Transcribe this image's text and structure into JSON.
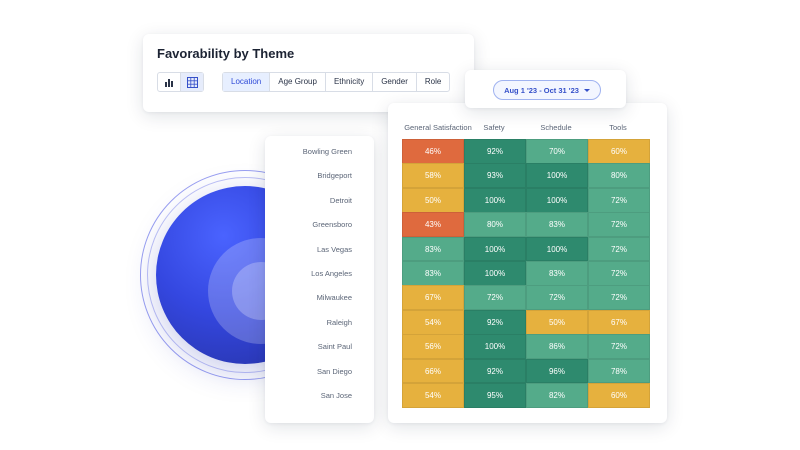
{
  "header": {
    "title": "Favorability by Theme",
    "view_toggle": [
      "bar-chart-icon",
      "grid-icon"
    ],
    "tabs": [
      {
        "label": "Location",
        "active": true
      },
      {
        "label": "Age Group",
        "active": false
      },
      {
        "label": "Ethnicity",
        "active": false
      },
      {
        "label": "Gender",
        "active": false
      },
      {
        "label": "Role",
        "active": false
      }
    ]
  },
  "date_filter": {
    "label": "Aug 1 '23 - Oct 31 '23",
    "icon": "chevron-down-icon"
  },
  "colors": {
    "red": "#df6a3e",
    "amber": "#e6b13e",
    "light_green": "#54ab8a",
    "dark_green": "#2e8a6e",
    "accent": "#3550c9"
  },
  "heatmap": {
    "columns": [
      "General Satisfaction",
      "Safety",
      "Schedule",
      "Tools"
    ],
    "rows": [
      {
        "location": "Bowling Green",
        "values": [
          "46%",
          "92%",
          "70%",
          "60%"
        ],
        "colors": [
          "red",
          "dark_green",
          "light_green",
          "amber"
        ]
      },
      {
        "location": "Bridgeport",
        "values": [
          "58%",
          "93%",
          "100%",
          "80%"
        ],
        "colors": [
          "amber",
          "dark_green",
          "dark_green",
          "light_green"
        ]
      },
      {
        "location": "Detroit",
        "values": [
          "50%",
          "100%",
          "100%",
          "72%"
        ],
        "colors": [
          "amber",
          "dark_green",
          "dark_green",
          "light_green"
        ]
      },
      {
        "location": "Greensboro",
        "values": [
          "43%",
          "80%",
          "83%",
          "72%"
        ],
        "colors": [
          "red",
          "light_green",
          "light_green",
          "light_green"
        ]
      },
      {
        "location": "Las Vegas",
        "values": [
          "83%",
          "100%",
          "100%",
          "72%"
        ],
        "colors": [
          "light_green",
          "dark_green",
          "dark_green",
          "light_green"
        ]
      },
      {
        "location": "Los Angeles",
        "values": [
          "83%",
          "100%",
          "83%",
          "72%"
        ],
        "colors": [
          "light_green",
          "dark_green",
          "light_green",
          "light_green"
        ]
      },
      {
        "location": "Milwaukee",
        "values": [
          "67%",
          "72%",
          "72%",
          "72%"
        ],
        "colors": [
          "amber",
          "light_green",
          "light_green",
          "light_green"
        ]
      },
      {
        "location": "Raleigh",
        "values": [
          "54%",
          "92%",
          "50%",
          "67%"
        ],
        "colors": [
          "amber",
          "dark_green",
          "amber",
          "amber"
        ]
      },
      {
        "location": "Saint Paul",
        "values": [
          "56%",
          "100%",
          "86%",
          "72%"
        ],
        "colors": [
          "amber",
          "dark_green",
          "light_green",
          "light_green"
        ]
      },
      {
        "location": "San Diego",
        "values": [
          "66%",
          "92%",
          "96%",
          "78%"
        ],
        "colors": [
          "amber",
          "dark_green",
          "dark_green",
          "light_green"
        ]
      },
      {
        "location": "San Jose",
        "values": [
          "54%",
          "95%",
          "82%",
          "60%"
        ],
        "colors": [
          "amber",
          "dark_green",
          "light_green",
          "amber"
        ]
      }
    ]
  }
}
